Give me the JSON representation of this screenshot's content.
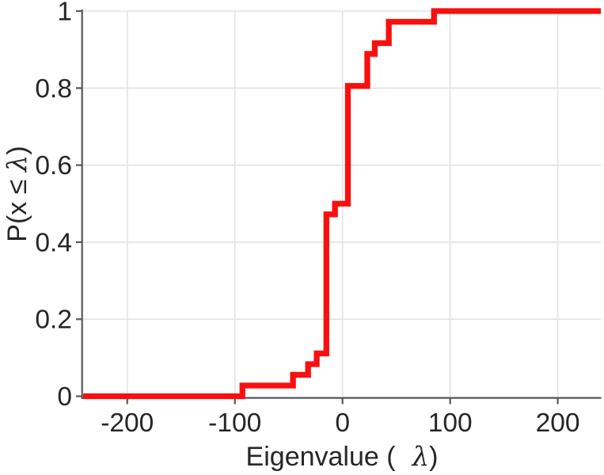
{
  "chart_data": {
    "type": "step",
    "subtype": "empirical-cdf",
    "title": "",
    "xlabel": {
      "pre": "Eigenvalue (",
      "lambda": "λ",
      "post": ")"
    },
    "ylabel": {
      "pre": "P(x ≤ ",
      "lambda": "λ",
      "post": ")"
    },
    "xlim": [
      -241,
      240
    ],
    "ylim": [
      0,
      1
    ],
    "x_ticks": [
      -200,
      -100,
      0,
      100,
      200
    ],
    "x_tick_labels": [
      "-200",
      "-100",
      "0",
      "100",
      "200"
    ],
    "y_ticks": [
      0,
      0.2,
      0.4,
      0.6,
      0.8,
      1
    ],
    "y_tick_labels": [
      "0",
      "0.2",
      "0.4",
      "0.6",
      "0.8",
      "1"
    ],
    "grid": true,
    "legend": null,
    "n_samples": 36,
    "line_color": "#fa0f0f",
    "grid_color": "#e3e3e3",
    "axis_color": "#595959",
    "tick_label_color": "#262626",
    "cdf_start_x": -241,
    "cdf_end_x": 240,
    "steps": [
      [
        -93,
        0.0278
      ],
      [
        -46,
        0.0556
      ],
      [
        -32,
        0.0833
      ],
      [
        -24,
        0.1111
      ],
      [
        -15,
        0.4722
      ],
      [
        -7,
        0.5
      ],
      [
        5,
        0.8056
      ],
      [
        23,
        0.8889
      ],
      [
        30,
        0.9167
      ],
      [
        43,
        0.9722
      ],
      [
        85,
        1.0
      ]
    ],
    "eigenvalues_with_multiplicity": [
      [
        -93,
        1
      ],
      [
        -46,
        1
      ],
      [
        -32,
        1
      ],
      [
        -24,
        1
      ],
      [
        -15,
        13
      ],
      [
        -7,
        1
      ],
      [
        5,
        11
      ],
      [
        23,
        3
      ],
      [
        30,
        1
      ],
      [
        43,
        2
      ],
      [
        85,
        1
      ]
    ]
  }
}
